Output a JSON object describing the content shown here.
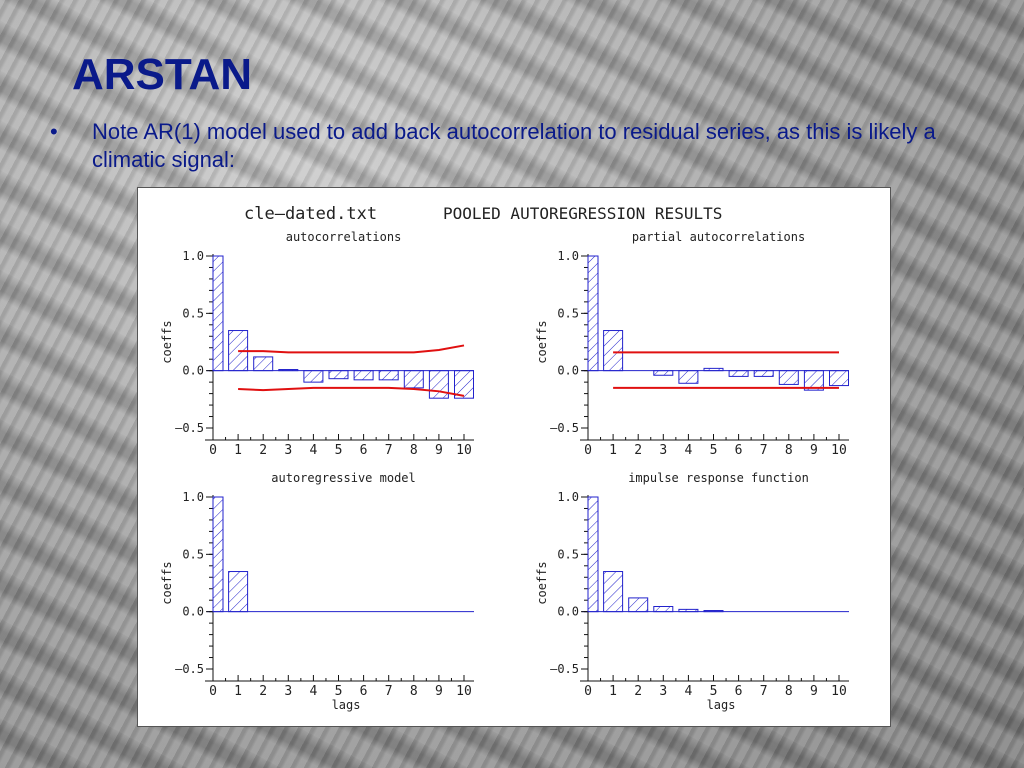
{
  "slide": {
    "title": "ARSTAN",
    "bullet_marker": "•",
    "bullet_text": "Note AR(1) model used to add back autocorrelation to residual series, as this is likely a climatic signal:"
  },
  "figure": {
    "file_label": "cle–dated.txt",
    "main_title": "POOLED AUTOREGRESSION RESULTS"
  },
  "colors": {
    "bar": "#2222cc",
    "band": "#e01010",
    "text": "#0a1a8a"
  },
  "chart_data": [
    {
      "type": "bar",
      "title": "autocorrelations",
      "xlabel": "",
      "ylabel": "coeffs",
      "x": [
        0,
        1,
        2,
        3,
        4,
        5,
        6,
        7,
        8,
        9,
        10
      ],
      "values": [
        1.0,
        0.35,
        0.12,
        0.01,
        -0.1,
        -0.07,
        -0.08,
        -0.08,
        -0.15,
        -0.24,
        -0.24
      ],
      "ylim": [
        -0.5,
        1.0
      ],
      "yticks": [
        "1.0",
        "0.5",
        "0.0",
        "–0.5"
      ],
      "xticks": [
        "0",
        "1",
        "2",
        "3",
        "4",
        "5",
        "6",
        "7",
        "8",
        "9",
        "10"
      ],
      "band_upper": [
        [
          1,
          0.17
        ],
        [
          2,
          0.17
        ],
        [
          3,
          0.16
        ],
        [
          4,
          0.16
        ],
        [
          5,
          0.16
        ],
        [
          6,
          0.16
        ],
        [
          7,
          0.16
        ],
        [
          8,
          0.16
        ],
        [
          9,
          0.18
        ],
        [
          10,
          0.22
        ]
      ],
      "band_lower": [
        [
          1,
          -0.16
        ],
        [
          2,
          -0.17
        ],
        [
          3,
          -0.16
        ],
        [
          4,
          -0.15
        ],
        [
          5,
          -0.15
        ],
        [
          6,
          -0.15
        ],
        [
          7,
          -0.15
        ],
        [
          8,
          -0.16
        ],
        [
          9,
          -0.18
        ],
        [
          10,
          -0.22
        ]
      ]
    },
    {
      "type": "bar",
      "title": "partial autocorrelations",
      "xlabel": "",
      "ylabel": "coeffs",
      "x": [
        0,
        1,
        2,
        3,
        4,
        5,
        6,
        7,
        8,
        9,
        10
      ],
      "values": [
        1.0,
        0.35,
        0.0,
        -0.04,
        -0.11,
        0.02,
        -0.05,
        -0.05,
        -0.12,
        -0.17,
        -0.13
      ],
      "ylim": [
        -0.5,
        1.0
      ],
      "yticks": [
        "1.0",
        "0.5",
        "0.0",
        "–0.5"
      ],
      "xticks": [
        "0",
        "1",
        "2",
        "3",
        "4",
        "5",
        "6",
        "7",
        "8",
        "9",
        "10"
      ],
      "band_upper": [
        [
          1,
          0.16
        ],
        [
          10,
          0.16
        ]
      ],
      "band_lower": [
        [
          1,
          -0.15
        ],
        [
          10,
          -0.15
        ]
      ]
    },
    {
      "type": "bar",
      "title": "autoregressive model",
      "xlabel": "lags",
      "ylabel": "coeffs",
      "x": [
        0,
        1,
        2,
        3,
        4,
        5,
        6,
        7,
        8,
        9,
        10
      ],
      "values": [
        1.0,
        0.35,
        0,
        0,
        0,
        0,
        0,
        0,
        0,
        0,
        0
      ],
      "ylim": [
        -0.5,
        1.0
      ],
      "yticks": [
        "1.0",
        "0.5",
        "0.0",
        "–0.5"
      ],
      "xticks": [
        "0",
        "1",
        "2",
        "3",
        "4",
        "5",
        "6",
        "7",
        "8",
        "9",
        "10"
      ],
      "band_upper": [],
      "band_lower": []
    },
    {
      "type": "bar",
      "title": "impulse response function",
      "xlabel": "lags",
      "ylabel": "coeffs",
      "x": [
        0,
        1,
        2,
        3,
        4,
        5,
        6,
        7,
        8,
        9,
        10
      ],
      "values": [
        1.0,
        0.35,
        0.12,
        0.045,
        0.02,
        0.01,
        0,
        0,
        0,
        0,
        0
      ],
      "ylim": [
        -0.5,
        1.0
      ],
      "yticks": [
        "1.0",
        "0.5",
        "0.0",
        "–0.5"
      ],
      "xticks": [
        "0",
        "1",
        "2",
        "3",
        "4",
        "5",
        "6",
        "7",
        "8",
        "9",
        "10"
      ],
      "band_upper": [],
      "band_lower": []
    }
  ]
}
